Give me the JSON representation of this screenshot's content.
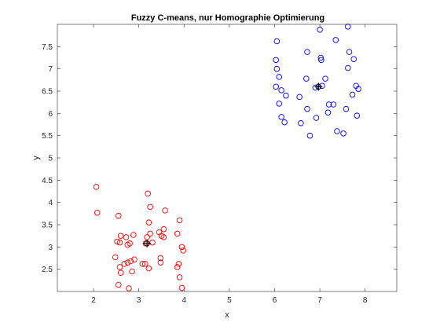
{
  "chart_data": {
    "type": "scatter",
    "title": "Fuzzy C-means, nur Homographie Optimierung",
    "xlabel": "x",
    "ylabel": "y",
    "xlim": [
      1.2,
      8.7
    ],
    "ylim": [
      2.0,
      8.0
    ],
    "xticks": [
      2,
      3,
      4,
      5,
      6,
      7,
      8
    ],
    "xtick_labels": [
      "2",
      "3",
      "4",
      "5",
      "6",
      "7",
      "8"
    ],
    "yticks": [
      2.5,
      3,
      3.5,
      4,
      4.5,
      5,
      5.5,
      6,
      6.5,
      7,
      7.5
    ],
    "ytick_labels": [
      "2.5",
      "3",
      "3.5",
      "4",
      "4.5",
      "5",
      "5.5",
      "6",
      "6.5",
      "7",
      "7.5"
    ],
    "grid": false,
    "legend": "none",
    "series": [
      {
        "marker": "circle-open",
        "color": "#ff0000",
        "x": [
          2.06,
          2.08,
          2.55,
          2.52,
          2.58,
          2.6,
          2.48,
          2.58,
          2.55,
          2.6,
          2.72,
          2.8,
          2.88,
          2.75,
          2.68,
          2.82,
          2.9,
          2.85,
          2.78,
          3.2,
          3.25,
          3.22,
          3.25,
          3.18,
          3.15,
          3.08,
          3.14,
          3.22,
          3.3,
          3.45,
          3.5,
          3.48,
          3.58,
          3.55,
          3.48,
          3.85,
          3.9,
          3.95,
          3.98,
          3.88,
          3.85,
          3.9,
          3.95,
          3.55,
          2.75
        ],
        "y": [
          4.35,
          3.77,
          3.7,
          3.12,
          3.1,
          3.25,
          2.77,
          2.55,
          2.15,
          2.42,
          3.22,
          3.08,
          3.27,
          2.65,
          2.62,
          2.68,
          2.72,
          2.45,
          2.07,
          4.2,
          3.9,
          3.55,
          3.3,
          3.22,
          3.08,
          2.62,
          2.62,
          2.52,
          3.1,
          3.33,
          3.25,
          2.75,
          3.82,
          3.22,
          2.65,
          3.3,
          3.6,
          3.0,
          2.92,
          2.62,
          2.55,
          2.32,
          2.08,
          3.4,
          3.05
        ]
      },
      {
        "marker": "circle-open",
        "color": "#0000ff",
        "x": [
          6.05,
          6.03,
          6.05,
          6.1,
          6.15,
          6.1,
          6.15,
          6.22,
          6.03,
          6.25,
          6.55,
          6.58,
          6.72,
          6.7,
          6.72,
          6.78,
          6.92,
          7.0,
          7.02,
          7.03,
          7.05,
          7.12,
          7.2,
          7.18,
          7.3,
          7.38,
          7.35,
          7.58,
          7.62,
          7.65,
          7.72,
          7.75,
          7.8,
          7.85,
          7.82,
          7.52,
          7.62,
          6.9
        ],
        "y": [
          7.62,
          7.2,
          7.0,
          6.82,
          6.52,
          6.22,
          5.92,
          5.8,
          6.6,
          6.4,
          6.37,
          5.78,
          7.38,
          6.78,
          6.1,
          5.5,
          5.9,
          7.88,
          7.25,
          7.2,
          6.62,
          6.78,
          6.2,
          6.02,
          6.2,
          5.6,
          7.65,
          6.1,
          7.95,
          7.38,
          6.42,
          7.22,
          6.62,
          6.55,
          5.95,
          5.55,
          7.02,
          6.58
        ]
      }
    ],
    "centers": [
      {
        "x": 3.18,
        "y": 3.08,
        "marker": "crosshair-circle",
        "color": "#000000"
      },
      {
        "x": 6.97,
        "y": 6.6,
        "marker": "crosshair-circle",
        "color": "#000000"
      }
    ]
  }
}
